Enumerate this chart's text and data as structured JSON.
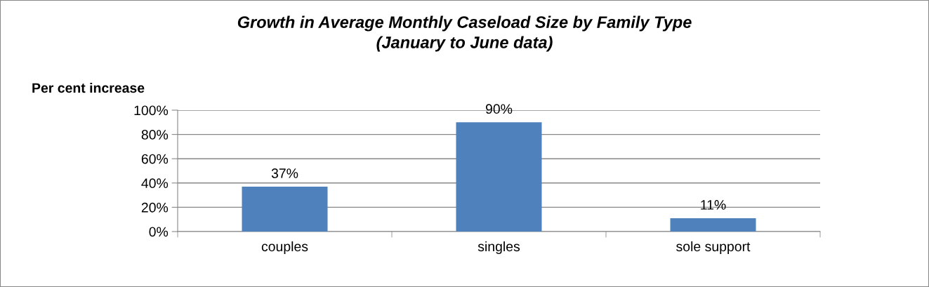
{
  "chart_data": {
    "type": "bar",
    "title": "Growth in Average Monthly Caseload Size by Family Type\n(January to June data)",
    "ylabel": "Per cent increase",
    "categories": [
      "couples",
      "singles",
      "sole support"
    ],
    "values": [
      37,
      90,
      11
    ],
    "color": "#4f81bd",
    "value_labels": [
      "37%",
      "90%",
      "11%"
    ],
    "ylim": [
      0,
      100
    ],
    "yticks": [
      {
        "value": 0,
        "label": "0%"
      },
      {
        "value": 20,
        "label": "20%"
      },
      {
        "value": 40,
        "label": "40%"
      },
      {
        "value": 60,
        "label": "60%"
      },
      {
        "value": 80,
        "label": "80%"
      },
      {
        "value": 100,
        "label": "100%"
      }
    ],
    "grid": "y",
    "legend": false
  }
}
